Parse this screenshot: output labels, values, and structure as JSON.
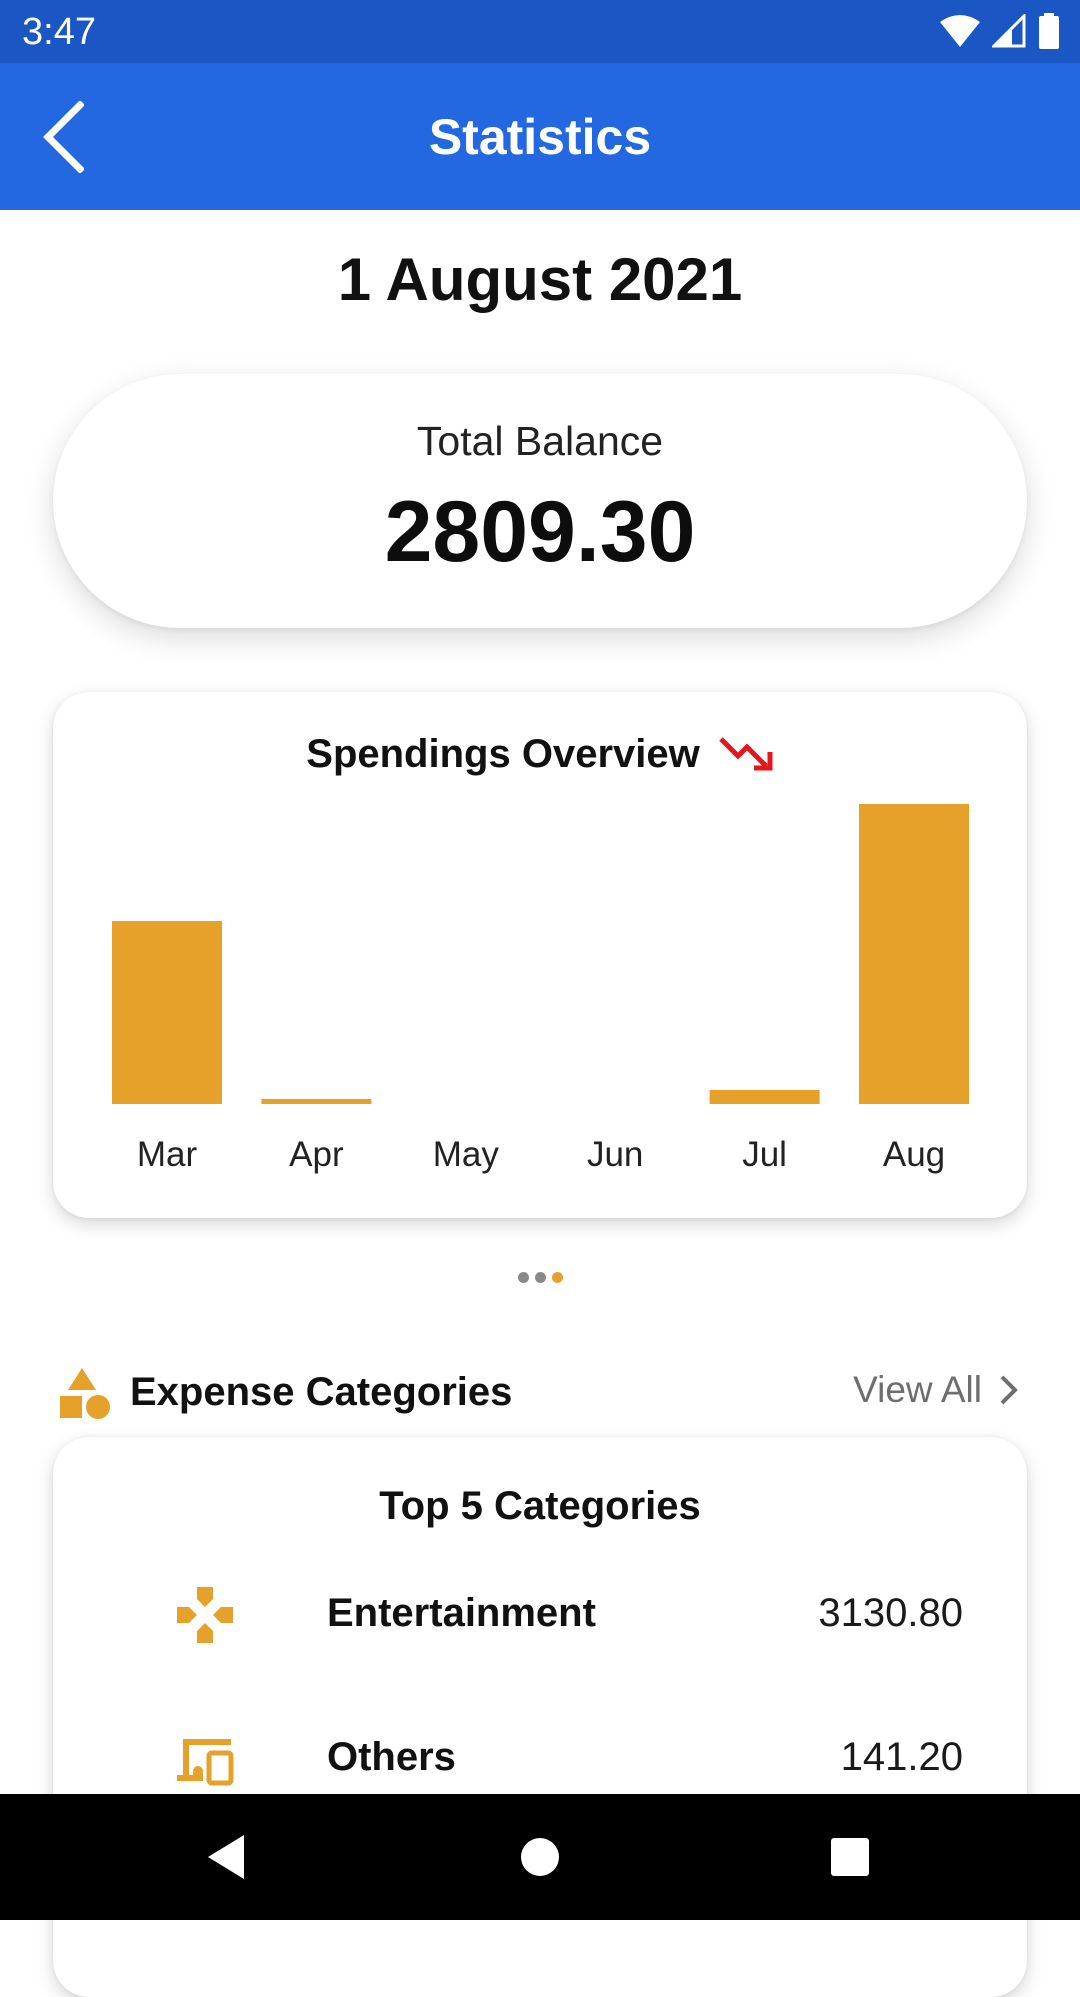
{
  "status_bar": {
    "time": "3:47",
    "icons": [
      "wifi-icon",
      "signal-icon",
      "battery-icon"
    ]
  },
  "app_bar": {
    "title": "Statistics",
    "back_icon": "chevron-left-icon"
  },
  "date_heading": "1 August 2021",
  "balance": {
    "label": "Total Balance",
    "value": "2809.30"
  },
  "spendings": {
    "title": "Spendings Overview",
    "trend_icon": "trending-down-icon",
    "trend_color": "#e8141c"
  },
  "chart_data": {
    "type": "bar",
    "title": "Spendings Overview",
    "categories": [
      "Mar",
      "Apr",
      "May",
      "Jun",
      "Jul",
      "Aug"
    ],
    "values": [
      1830,
      40,
      0,
      0,
      140,
      3000
    ],
    "ylim": [
      0,
      3000
    ],
    "grid": false,
    "bar_color": "#e5a12a"
  },
  "pager": {
    "count": 3,
    "active_index": 2
  },
  "expense_section": {
    "title": "Expense Categories",
    "view_all": "View All",
    "icon": "shapes-icon",
    "accent_color": "#e5a12a"
  },
  "categories_card": {
    "title": "Top 5 Categories",
    "items": [
      {
        "name": "Entertainment",
        "amount": "3130.80",
        "icon": "gamepad-icon"
      },
      {
        "name": "Others",
        "amount": "141.20",
        "icon": "devices-icon"
      }
    ]
  },
  "nav_bar": {
    "buttons": [
      "back-triangle-icon",
      "home-circle-icon",
      "recents-square-icon"
    ]
  }
}
